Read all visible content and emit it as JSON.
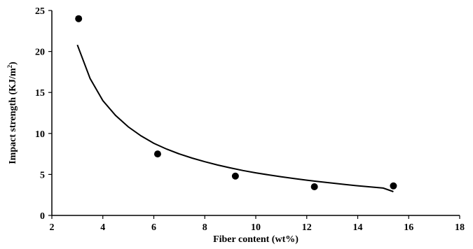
{
  "chart_data": {
    "type": "scatter",
    "xlabel": "Fiber content (wt%)",
    "ylabel_main": "Impact strength (KJ/m",
    "ylabel_sup": "2",
    "ylabel_close": ")",
    "xlim": [
      2,
      18
    ],
    "ylim": [
      0,
      25
    ],
    "xticks": [
      2,
      4,
      6,
      8,
      10,
      12,
      14,
      16,
      18
    ],
    "yticks": [
      0,
      5,
      10,
      15,
      20,
      25
    ],
    "grid": false,
    "series": [
      {
        "kind": "points",
        "x": [
          3.05,
          6.15,
          9.2,
          12.3,
          15.4
        ],
        "y": [
          24.0,
          7.5,
          4.8,
          3.5,
          3.6
        ]
      },
      {
        "kind": "fit-curve",
        "x": [
          3.0,
          3.5,
          4.0,
          4.5,
          5.0,
          5.5,
          6.0,
          6.5,
          7.0,
          7.5,
          8.0,
          8.5,
          9.0,
          9.5,
          10.0,
          10.5,
          11.0,
          11.5,
          12.0,
          12.5,
          13.0,
          13.5,
          14.0,
          14.5,
          15.0,
          15.4
        ],
        "y": [
          20.8,
          16.7,
          14.0,
          12.2,
          10.8,
          9.7,
          8.8,
          8.1,
          7.5,
          7.0,
          6.55,
          6.15,
          5.8,
          5.48,
          5.2,
          4.95,
          4.72,
          4.5,
          4.3,
          4.12,
          3.95,
          3.78,
          3.62,
          3.47,
          3.34,
          2.9
        ]
      }
    ]
  }
}
